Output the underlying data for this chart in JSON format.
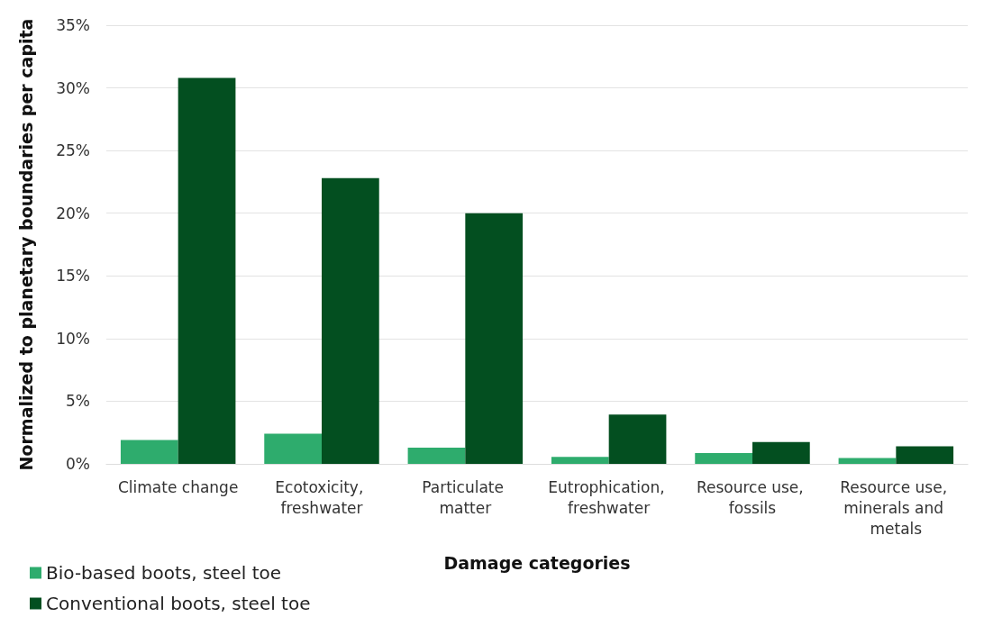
{
  "chart_data": {
    "type": "bar",
    "xlabel": "Damage categories",
    "ylabel": "Normalized to planetary boundaries per capita",
    "categories": [
      "Climate change",
      "Ecotoxicity, freshwater",
      "Particulate matter",
      "Eutrophication, freshwater",
      "Resource use, fossils",
      "Resource use, minerals and metals"
    ],
    "series": [
      {
        "name": "Bio-based boots, steel toe",
        "color": "#2eac6d",
        "values": [
          1.9,
          2.4,
          1.3,
          0.56,
          0.86,
          0.47
        ]
      },
      {
        "name": "Conventional boots, steel toe",
        "color": "#034f20",
        "values": [
          30.8,
          22.8,
          20,
          3.93,
          1.75,
          1.4
        ]
      }
    ],
    "ylim": [
      0,
      35
    ],
    "yticks": [
      {
        "value": 0,
        "label": "0%"
      },
      {
        "value": 5,
        "label": "5%"
      },
      {
        "value": 10,
        "label": "10%"
      },
      {
        "value": 15,
        "label": "15%"
      },
      {
        "value": 20,
        "label": "20%"
      },
      {
        "value": 25,
        "label": "25%"
      },
      {
        "value": 30,
        "label": "30%"
      },
      {
        "value": 35,
        "label": "35%"
      }
    ],
    "grid": "y",
    "legend": "bottom left"
  }
}
